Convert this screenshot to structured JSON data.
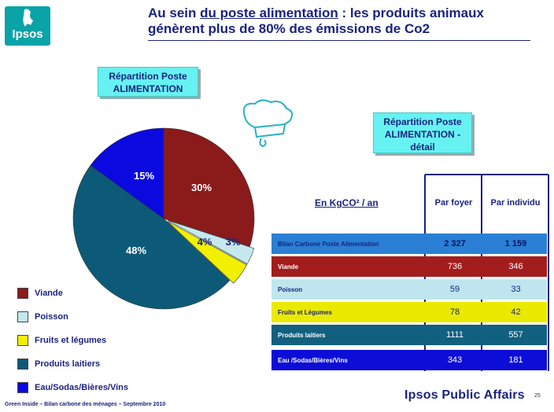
{
  "logo": {
    "text": "Ipsos"
  },
  "title": {
    "prefix": "Au sein ",
    "underlined": "du poste alimentation",
    "rest": " : les produits animaux génèrent plus de 80% des émissions de Co2"
  },
  "box_left": {
    "line1": "Répartition Poste",
    "line2": "ALIMENTATION"
  },
  "box_right": {
    "line1": "Répartition Poste",
    "line2": "ALIMENTATION -",
    "line3": "détail"
  },
  "chart_data": {
    "type": "pie",
    "slices": [
      {
        "name": "Viande",
        "value": 30,
        "label": "30%",
        "color": "#8b1a1a"
      },
      {
        "name": "Poisson",
        "value": 3,
        "label": "3%",
        "color": "#c5e8ee"
      },
      {
        "name": "Fruits et légumes",
        "value": 4,
        "label": "4%",
        "color": "#f0f000"
      },
      {
        "name": "Produits laitiers",
        "value": 48,
        "label": "48%",
        "color": "#0d5a78"
      },
      {
        "name": "Eau/Sodas/Bières/Vins",
        "value": 15,
        "label": "15%",
        "color": "#0a0ae0"
      }
    ]
  },
  "table": {
    "unit_label": "En KgCO² / an",
    "col1": "Par foyer",
    "col2": "Par individu",
    "rows": [
      {
        "label": "Bilan Carbone Poste Alimentation",
        "v1": "2 327",
        "v2": "1 159",
        "bg": "#2a7fd4",
        "fg": "#1a237e"
      },
      {
        "label": "Viande",
        "v1": "736",
        "v2": "346",
        "bg": "#a41d1d",
        "fg": "#ffffff"
      },
      {
        "label": "Poisson",
        "v1": "59",
        "v2": "33",
        "bg": "#bfe6ee",
        "fg": "#1a237e"
      },
      {
        "label": "Fruits et Légumes",
        "v1": "78",
        "v2": "42",
        "bg": "#eaea00",
        "fg": "#1a237e"
      },
      {
        "label": "Produits laitiers",
        "v1": "1111",
        "v2": "557",
        "bg": "#126080",
        "fg": "#ffffff"
      },
      {
        "label": "Eau /Sodas/Bières/Vins",
        "v1": "343",
        "v2": "181",
        "bg": "#0d0dd8",
        "fg": "#ffffff"
      }
    ]
  },
  "footer": {
    "text": "Green Inside – Bilan carbone des ménages – Septembre 2010"
  },
  "brand": {
    "text": "Ipsos Public Affairs"
  },
  "page_number": "25"
}
